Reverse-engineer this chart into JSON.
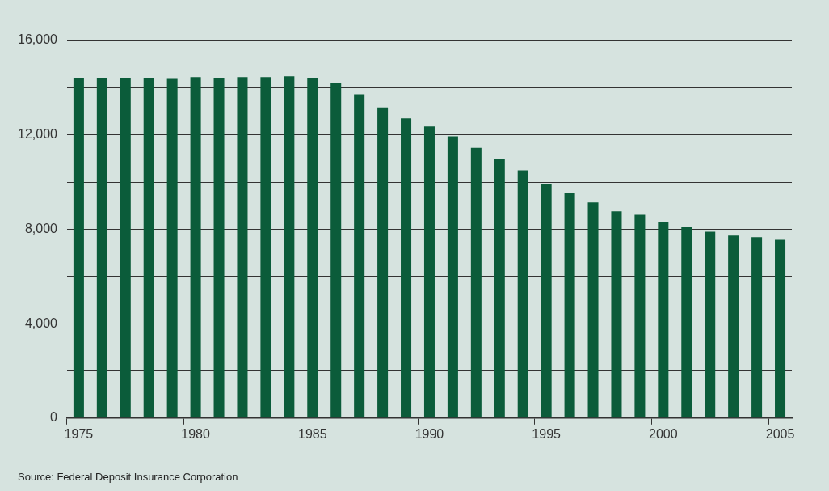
{
  "chart_data": {
    "type": "bar",
    "categories": [
      "1975",
      null,
      null,
      null,
      null,
      "1980",
      null,
      null,
      null,
      null,
      "1985",
      null,
      null,
      null,
      null,
      "1990",
      null,
      null,
      null,
      null,
      "1995",
      null,
      null,
      null,
      null,
      "2000",
      null,
      null,
      null,
      null,
      "2005"
    ],
    "values": [
      14400,
      14400,
      14400,
      14400,
      14370,
      14450,
      14400,
      14450,
      14450,
      14480,
      14400,
      14220,
      13720,
      13160,
      12700,
      12360,
      11940,
      11450,
      10960,
      10500,
      9930,
      9550,
      9140,
      8760,
      8610,
      8300,
      8080,
      7890,
      7730,
      7660,
      7550
    ],
    "color": "#0b5c3a",
    "ylim": [
      0,
      16000
    ],
    "yticks": [
      {
        "value": 0,
        "label": "0"
      },
      {
        "value": 2000,
        "label": null
      },
      {
        "value": 4000,
        "label": "4,000"
      },
      {
        "value": 6000,
        "label": null
      },
      {
        "value": 8000,
        "label": "8,000"
      },
      {
        "value": 10000,
        "label": null
      },
      {
        "value": 12000,
        "label": "12,000"
      },
      {
        "value": 14000,
        "label": null
      },
      {
        "value": 16000,
        "label": "16,000"
      }
    ],
    "grid": "y",
    "annotations": [
      "Source: Federal Deposit Insurance Corporation"
    ]
  }
}
